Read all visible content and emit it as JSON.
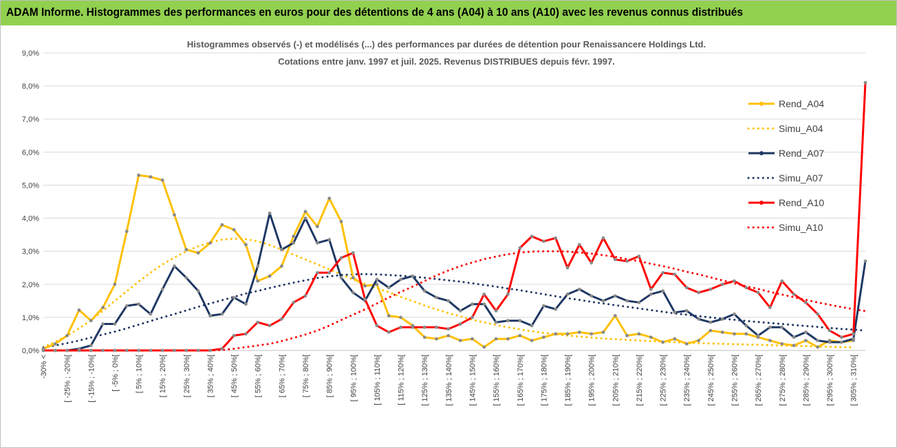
{
  "header": {
    "title": "ADAM Informe. Histogrammes des performances en euros pour des détentions de 4 ans (A04) à 10 ans (A10) avec les revenus connus distribués"
  },
  "colors": {
    "banner": "#92d050",
    "A04": "#ffc000",
    "A07": "#1f3864",
    "A10": "#ff0000",
    "grid": "#d9d9d9"
  },
  "chart_data": {
    "type": "line",
    "title": "Histogrammes observés (-) et modélisés (...) des performances par durées de détention pour Renaissancere Holdings Ltd.",
    "subtitle": "Cotations entre janv. 1997 et juil. 2025. Revenus DISTRIBUES depuis févr. 1997.",
    "xlabel": "",
    "ylabel": "",
    "ylim": [
      0,
      9
    ],
    "grid": true,
    "legend_position": "right",
    "yticks": [
      "0,0%",
      "1,0%",
      "2,0%",
      "3,0%",
      "4,0%",
      "5,0%",
      "6,0%",
      "7,0%",
      "8,0%",
      "9,0%"
    ],
    "xticks": [
      "-30% <",
      "[ -25% ; -20%[",
      "[ -15% ; -10%[",
      "[ -5% ; 0%[",
      "[ 5% ; 10%[",
      "[ 15% ; 20%[",
      "[ 25% ; 30%[",
      "[ 35% ; 40%[",
      "[ 45% ; 50%[",
      "[ 55% ; 60%[",
      "[ 65% ; 70%[",
      "[ 75% ; 80%[",
      "[ 85% ; 90%[",
      "[ 95% ; 100%[",
      "[ 105% ; 110%[",
      "[ 115% ; 120%[",
      "[ 125% ; 130%[",
      "[ 135% ; 140%[",
      "[ 145% ; 150%[",
      "[ 155% ; 160%[",
      "[ 165% ; 170%[",
      "[ 175% ; 180%[",
      "[ 185% ; 190%[",
      "[ 195% ; 200%[",
      "[ 205% ; 210%[",
      "[ 215% ; 220%[",
      "[ 225% ; 230%[",
      "[ 235% ; 240%[",
      "[ 245% ; 250%[",
      "[ 255% ; 260%[",
      "[ 265% ; 270%[",
      "[ 275% ; 280%[",
      "[ 285% ; 290%[",
      "[ 295% ; 300%[",
      "[ 305% ; 310%["
    ],
    "series": [
      {
        "name": "Rend_A04",
        "style": "solid",
        "marker": true,
        "color": "#ffc000",
        "values": [
          0.05,
          0.2,
          0.45,
          1.22,
          0.9,
          1.3,
          2.0,
          3.6,
          5.3,
          5.25,
          5.15,
          4.1,
          3.05,
          2.95,
          3.25,
          3.8,
          3.65,
          3.2,
          2.1,
          2.25,
          2.55,
          3.45,
          4.2,
          3.75,
          4.6,
          3.9,
          2.2,
          1.95,
          2.0,
          1.05,
          1.0,
          0.75,
          0.4,
          0.35,
          0.45,
          0.3,
          0.35,
          0.1,
          0.35,
          0.35,
          0.45,
          0.3,
          0.4,
          0.5,
          0.5,
          0.55,
          0.5,
          0.55,
          1.05,
          0.45,
          0.5,
          0.4,
          0.25,
          0.35,
          0.2,
          0.3,
          0.6,
          0.55,
          0.5,
          0.5,
          0.4,
          0.3,
          0.2,
          0.15,
          0.3,
          0.1,
          0.3,
          0.25,
          0.3
        ]
      },
      {
        "name": "Simu_A04",
        "style": "dotted",
        "marker": false,
        "color": "#ffc000",
        "values": [
          0.1,
          0.26,
          0.44,
          0.67,
          0.91,
          1.2,
          1.5,
          1.79,
          2.08,
          2.35,
          2.6,
          2.81,
          3.0,
          3.15,
          3.27,
          3.35,
          3.38,
          3.37,
          3.3,
          3.19,
          3.05,
          2.9,
          2.75,
          2.6,
          2.45,
          2.3,
          2.15,
          2.01,
          1.88,
          1.76,
          1.62,
          1.49,
          1.36,
          1.24,
          1.13,
          1.03,
          0.93,
          0.85,
          0.77,
          0.7,
          0.64,
          0.58,
          0.53,
          0.49,
          0.45,
          0.42,
          0.39,
          0.36,
          0.34,
          0.32,
          0.3,
          0.28,
          0.27,
          0.25,
          0.24,
          0.22,
          0.21,
          0.2,
          0.19,
          0.18,
          0.17,
          0.16,
          0.15,
          0.14,
          0.13,
          0.12,
          0.11,
          0.1,
          0.09
        ]
      },
      {
        "name": "Rend_A07",
        "style": "solid",
        "marker": true,
        "color": "#1f3864",
        "values": [
          0.0,
          0.0,
          0.0,
          0.05,
          0.15,
          0.8,
          0.8,
          1.35,
          1.4,
          1.1,
          1.85,
          2.55,
          2.2,
          1.8,
          1.05,
          1.1,
          1.6,
          1.4,
          2.55,
          4.15,
          3.05,
          3.25,
          4.0,
          3.25,
          3.35,
          2.2,
          1.75,
          1.5,
          2.15,
          1.9,
          2.15,
          2.25,
          1.8,
          1.6,
          1.5,
          1.2,
          1.4,
          1.4,
          0.85,
          0.9,
          0.9,
          0.75,
          1.35,
          1.25,
          1.7,
          1.85,
          1.65,
          1.5,
          1.65,
          1.5,
          1.45,
          1.7,
          1.8,
          1.15,
          1.2,
          0.95,
          0.85,
          0.95,
          1.1,
          0.75,
          0.45,
          0.7,
          0.7,
          0.4,
          0.55,
          0.3,
          0.25,
          0.25,
          0.35,
          2.7
        ]
      },
      {
        "name": "Simu_A07",
        "style": "dotted",
        "marker": false,
        "color": "#1f3864",
        "values": [
          0.09,
          0.15,
          0.22,
          0.3,
          0.39,
          0.48,
          0.57,
          0.67,
          0.78,
          0.89,
          1.0,
          1.1,
          1.21,
          1.32,
          1.42,
          1.52,
          1.62,
          1.72,
          1.8,
          1.89,
          1.97,
          2.05,
          2.12,
          2.19,
          2.24,
          2.28,
          2.3,
          2.31,
          2.3,
          2.28,
          2.26,
          2.23,
          2.2,
          2.16,
          2.12,
          2.08,
          2.03,
          1.98,
          1.93,
          1.87,
          1.82,
          1.76,
          1.7,
          1.64,
          1.58,
          1.53,
          1.47,
          1.42,
          1.37,
          1.32,
          1.27,
          1.22,
          1.17,
          1.12,
          1.08,
          1.04,
          1.0,
          0.96,
          0.93,
          0.89,
          0.86,
          0.83,
          0.8,
          0.77,
          0.74,
          0.71,
          0.68,
          0.65,
          0.63,
          0.6
        ]
      },
      {
        "name": "Rend_A10",
        "style": "solid",
        "marker": true,
        "color": "#ff0000",
        "values": [
          0.0,
          0.0,
          0.0,
          0.0,
          0.0,
          0.0,
          0.0,
          0.0,
          0.0,
          0.0,
          0.0,
          0.0,
          0.0,
          0.0,
          0.0,
          0.05,
          0.45,
          0.5,
          0.85,
          0.75,
          0.95,
          1.45,
          1.65,
          2.35,
          2.35,
          2.8,
          2.95,
          1.55,
          0.75,
          0.55,
          0.7,
          0.7,
          0.7,
          0.7,
          0.65,
          0.8,
          1.0,
          1.7,
          1.2,
          1.7,
          3.1,
          3.45,
          3.3,
          3.4,
          2.5,
          3.2,
          2.65,
          3.4,
          2.75,
          2.7,
          2.85,
          1.85,
          2.35,
          2.3,
          1.9,
          1.75,
          1.85,
          2.0,
          2.1,
          1.9,
          1.75,
          1.3,
          2.1,
          1.7,
          1.45,
          1.1,
          0.6,
          0.4,
          0.5,
          8.1
        ]
      },
      {
        "name": "Simu_A10",
        "style": "dotted",
        "marker": false,
        "color": "#ff0000",
        "values": [
          0.0,
          0.0,
          0.0,
          0.0,
          0.0,
          0.0,
          0.0,
          0.0,
          0.0,
          0.0,
          0.0,
          0.0,
          0.0,
          0.0,
          0.0,
          0.01,
          0.05,
          0.1,
          0.15,
          0.2,
          0.28,
          0.38,
          0.48,
          0.6,
          0.75,
          0.92,
          1.08,
          1.24,
          1.42,
          1.6,
          1.77,
          1.93,
          2.1,
          2.27,
          2.42,
          2.55,
          2.66,
          2.76,
          2.84,
          2.91,
          2.96,
          2.99,
          3.0,
          3.0,
          2.99,
          2.96,
          2.93,
          2.88,
          2.83,
          2.76,
          2.7,
          2.62,
          2.55,
          2.47,
          2.38,
          2.3,
          2.21,
          2.12,
          2.03,
          1.94,
          1.86,
          1.77,
          1.69,
          1.61,
          1.53,
          1.45,
          1.38,
          1.31,
          1.25,
          1.19
        ]
      }
    ]
  }
}
